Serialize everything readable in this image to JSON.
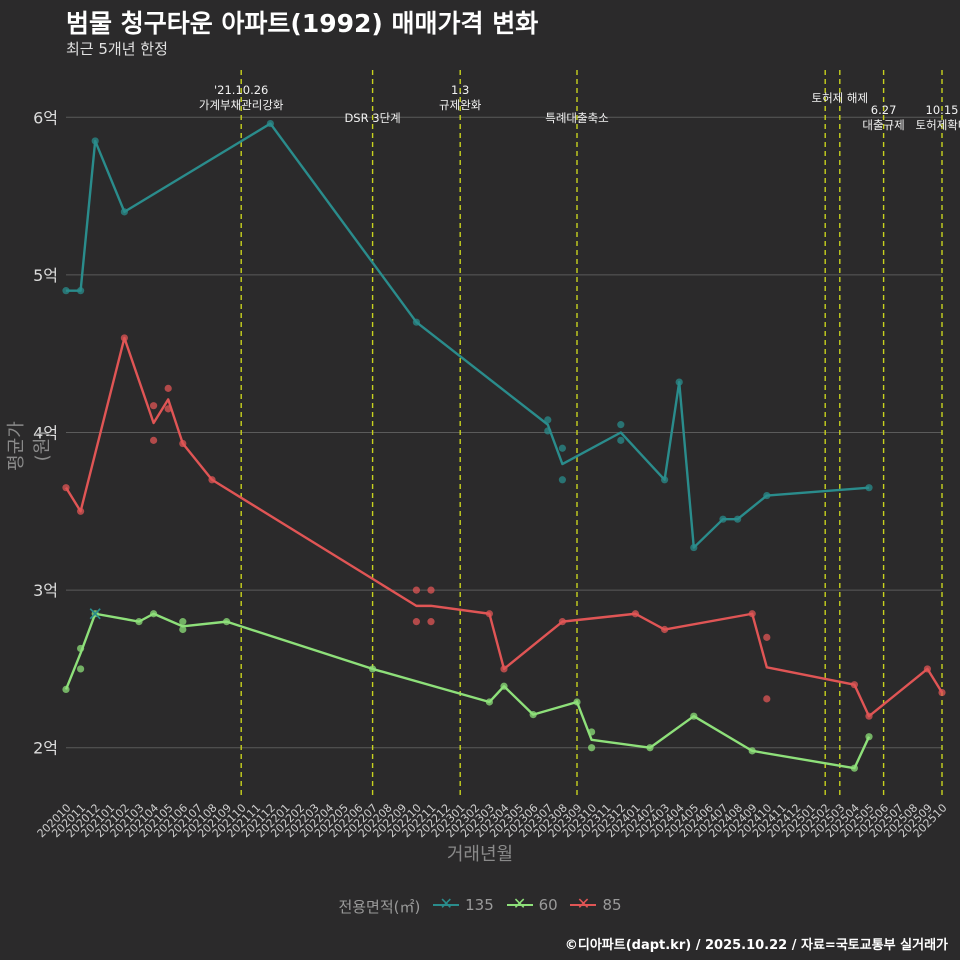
{
  "title": "범물 청구타운 아파트(1992) 매매가격 변화",
  "subtitle": "최근 5개년 한정",
  "caption": "©디아파트(dapt.kr) / 2025.10.22 / 자료=국토교통부 실거래가",
  "colors": {
    "background": "#2b2a2b",
    "grid": "#5b5b5b",
    "vline": "#c8d21e",
    "s135": "#2a8c8c",
    "s60": "#8ee07a",
    "s85": "#e05555"
  },
  "chart_data": {
    "type": "line",
    "title": "범물 청구타운 아파트(1992) 매매가격 변화",
    "xlabel": "거래년월",
    "ylabel": "평균가(원)",
    "ylim": [
      1.7,
      6.3
    ],
    "yticks": [
      2,
      3,
      4,
      5,
      6
    ],
    "ytick_labels": [
      "2억",
      "3억",
      "4억",
      "5억",
      "6억"
    ],
    "x_categories": [
      "202010",
      "202011",
      "202012",
      "202101",
      "202102",
      "202103",
      "202104",
      "202105",
      "202106",
      "202107",
      "202108",
      "202109",
      "202110",
      "202111",
      "202112",
      "202201",
      "202202",
      "202203",
      "202204",
      "202205",
      "202206",
      "202207",
      "202208",
      "202209",
      "202210",
      "202211",
      "202212",
      "202301",
      "202302",
      "202303",
      "202304",
      "202305",
      "202306",
      "202307",
      "202308",
      "202309",
      "202310",
      "202311",
      "202312",
      "202401",
      "202402",
      "202403",
      "202404",
      "202405",
      "202406",
      "202407",
      "202408",
      "202409",
      "202410",
      "202411",
      "202412",
      "202501",
      "202502",
      "202503",
      "202504",
      "202505",
      "202506",
      "202507",
      "202508",
      "202509",
      "202510"
    ],
    "legend_title": "전용면적(㎡)",
    "legend": [
      "135",
      "60",
      "85"
    ],
    "events": [
      {
        "x": 12.0,
        "label": "'21.10.26\n가계부채관리강화",
        "level": 0
      },
      {
        "x": 21.0,
        "label": "DSR 3단계",
        "level": 1
      },
      {
        "x": 27.0,
        "label": "1.3\n규제완화",
        "level": 0
      },
      {
        "x": 35.0,
        "label": "특례대출축소",
        "level": 1
      },
      {
        "x": 52.0,
        "label": "",
        "level": 0
      },
      {
        "x": 53.0,
        "label": "토허제 해제",
        "level": 0
      },
      {
        "x": 56.0,
        "label": "6.27\n대출규제",
        "level": 2
      },
      {
        "x": 60.0,
        "label": "10.15\n토허제확대",
        "level": 2
      }
    ],
    "series": [
      {
        "name": "135",
        "line": [
          [
            0,
            4.9
          ],
          [
            1,
            4.9
          ],
          [
            2,
            5.85
          ],
          [
            4,
            5.4
          ],
          [
            14,
            5.96
          ],
          [
            24,
            4.7
          ],
          [
            33,
            4.05
          ],
          [
            34,
            3.8
          ],
          [
            38,
            4.0
          ],
          [
            41,
            3.7
          ],
          [
            42,
            4.32
          ],
          [
            43,
            3.27
          ],
          [
            45,
            3.45
          ],
          [
            46,
            3.45
          ],
          [
            48,
            3.6
          ],
          [
            55,
            3.65
          ]
        ],
        "points": [
          [
            0,
            4.9
          ],
          [
            1,
            4.9
          ],
          [
            2,
            5.85
          ],
          [
            4,
            5.4
          ],
          [
            14,
            5.96
          ],
          [
            24,
            4.7
          ],
          [
            33,
            4.08
          ],
          [
            33,
            4.01
          ],
          [
            34,
            3.9
          ],
          [
            34,
            3.7
          ],
          [
            38,
            4.05
          ],
          [
            38,
            3.95
          ],
          [
            41,
            3.7
          ],
          [
            42,
            4.32
          ],
          [
            43,
            3.27
          ],
          [
            45,
            3.45
          ],
          [
            46,
            3.45
          ],
          [
            48,
            3.6
          ],
          [
            55,
            3.65
          ]
        ],
        "x_marks": []
      },
      {
        "name": "60",
        "line": [
          [
            0,
            2.37
          ],
          [
            1,
            2.6
          ],
          [
            2,
            2.85
          ],
          [
            5,
            2.8
          ],
          [
            6,
            2.85
          ],
          [
            8,
            2.77
          ],
          [
            11,
            2.8
          ],
          [
            21,
            2.5
          ],
          [
            29,
            2.29
          ],
          [
            30,
            2.39
          ],
          [
            32,
            2.21
          ],
          [
            35,
            2.29
          ],
          [
            36,
            2.05
          ],
          [
            40,
            2.0
          ],
          [
            43,
            2.2
          ],
          [
            47,
            1.98
          ],
          [
            54,
            1.87
          ],
          [
            55,
            2.07
          ]
        ],
        "points": [
          [
            0,
            2.37
          ],
          [
            1,
            2.63
          ],
          [
            1,
            2.5
          ],
          [
            2,
            2.85
          ],
          [
            5,
            2.8
          ],
          [
            6,
            2.85
          ],
          [
            8,
            2.8
          ],
          [
            8,
            2.75
          ],
          [
            11,
            2.8
          ],
          [
            21,
            2.5
          ],
          [
            29,
            2.29
          ],
          [
            30,
            2.39
          ],
          [
            32,
            2.21
          ],
          [
            35,
            2.29
          ],
          [
            36,
            2.1
          ],
          [
            36,
            2.0
          ],
          [
            40,
            2.0
          ],
          [
            43,
            2.2
          ],
          [
            47,
            1.98
          ],
          [
            54,
            1.87
          ],
          [
            55,
            2.07
          ]
        ],
        "x_marks": [
          [
            2,
            2.85
          ]
        ]
      },
      {
        "name": "85",
        "line": [
          [
            0,
            3.65
          ],
          [
            1,
            3.5
          ],
          [
            4,
            4.6
          ],
          [
            6,
            4.06
          ],
          [
            7,
            4.21
          ],
          [
            8,
            3.93
          ],
          [
            10,
            3.7
          ],
          [
            24,
            2.9
          ],
          [
            25,
            2.9
          ],
          [
            29,
            2.85
          ],
          [
            30,
            2.5
          ],
          [
            34,
            2.8
          ],
          [
            39,
            2.85
          ],
          [
            41,
            2.75
          ],
          [
            47,
            2.85
          ],
          [
            48,
            2.51
          ],
          [
            54,
            2.4
          ],
          [
            55,
            2.2
          ],
          [
            59,
            2.5
          ],
          [
            60,
            2.35
          ]
        ],
        "points": [
          [
            0,
            3.65
          ],
          [
            1,
            3.5
          ],
          [
            4,
            4.6
          ],
          [
            6,
            4.17
          ],
          [
            6,
            3.95
          ],
          [
            7,
            4.28
          ],
          [
            7,
            4.15
          ],
          [
            8,
            3.93
          ],
          [
            10,
            3.7
          ],
          [
            24,
            3.0
          ],
          [
            24,
            2.8
          ],
          [
            25,
            3.0
          ],
          [
            25,
            2.8
          ],
          [
            29,
            2.85
          ],
          [
            30,
            2.5
          ],
          [
            34,
            2.8
          ],
          [
            39,
            2.85
          ],
          [
            41,
            2.75
          ],
          [
            47,
            2.85
          ],
          [
            48,
            2.7
          ],
          [
            48,
            2.31
          ],
          [
            54,
            2.4
          ],
          [
            55,
            2.2
          ],
          [
            59,
            2.5
          ],
          [
            60,
            2.35
          ]
        ],
        "x_marks": []
      }
    ]
  }
}
